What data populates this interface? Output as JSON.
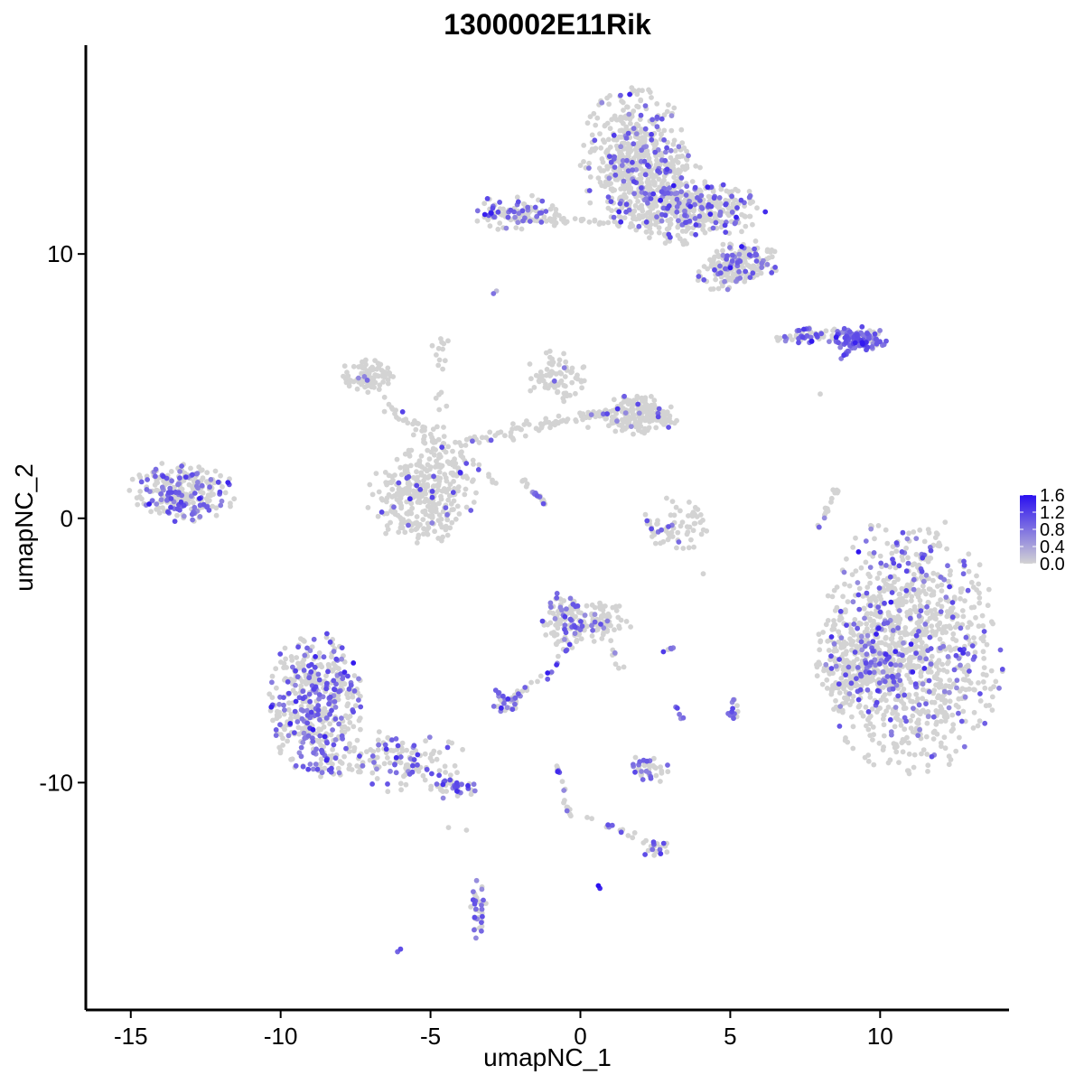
{
  "chart_data": {
    "type": "scatter",
    "title": "1300002E11Rik",
    "xlabel": "umapNC_1",
    "ylabel": "umapNC_2",
    "xlim": [
      -16.5,
      14.3
    ],
    "ylim": [
      -18.6,
      17.9
    ],
    "x_ticks": [
      -15,
      -10,
      -5,
      0,
      5,
      10
    ],
    "x_tick_labels": [
      "-15",
      "-10",
      "-5",
      "0",
      "5",
      "10"
    ],
    "y_ticks": [
      -10,
      0,
      10
    ],
    "y_tick_labels": [
      "-10",
      "0",
      "10"
    ],
    "grid": false,
    "legend": {
      "placement": "right",
      "type": "colorbar",
      "low_color": "#d3d3d3",
      "high_color": "#2a10f0",
      "range": [
        0,
        1.6
      ],
      "ticks": [
        0.0,
        0.4,
        0.8,
        1.2,
        1.6
      ],
      "tick_labels": [
        "0.0",
        "0.4",
        "0.8",
        "1.2",
        "1.6"
      ]
    },
    "point_color_low": "#d3d3d3",
    "point_color_high": "#2a10f0",
    "clusters": [
      {
        "center": [
          11.0,
          -4.8
        ],
        "spread": [
          1.5,
          2.4
        ],
        "n": 1100,
        "expr_frac": 0.2
      },
      {
        "center": [
          9.0,
          -5.6
        ],
        "spread": [
          0.55,
          0.9
        ],
        "n": 150,
        "expr_frac": 0.15
      },
      {
        "center": [
          1.8,
          13.6
        ],
        "spread": [
          0.9,
          1.3
        ],
        "n": 500,
        "expr_frac": 0.2
      },
      {
        "center": [
          3.0,
          12.0
        ],
        "spread": [
          0.7,
          0.9
        ],
        "n": 220,
        "expr_frac": 0.15
      },
      {
        "center": [
          4.3,
          11.7
        ],
        "spread": [
          1.0,
          0.5
        ],
        "n": 220,
        "expr_frac": 0.25
      },
      {
        "center": [
          5.5,
          9.7
        ],
        "spread": [
          0.6,
          0.4
        ],
        "n": 140,
        "expr_frac": 0.25
      },
      {
        "center": [
          4.7,
          9.3
        ],
        "spread": [
          0.4,
          0.4
        ],
        "n": 60,
        "expr_frac": 0.15
      },
      {
        "center": [
          -2.2,
          11.6
        ],
        "spread": [
          0.7,
          0.35
        ],
        "n": 80,
        "expr_frac": 0.35
      },
      {
        "center": [
          9.3,
          6.8
        ],
        "spread": [
          0.5,
          0.22
        ],
        "n": 120,
        "expr_frac": 0.85
      },
      {
        "center": [
          7.8,
          6.9
        ],
        "spread": [
          0.7,
          0.15
        ],
        "n": 60,
        "expr_frac": 0.6
      },
      {
        "center": [
          -13.3,
          1.0
        ],
        "spread": [
          0.9,
          0.55
        ],
        "n": 260,
        "expr_frac": 0.3
      },
      {
        "center": [
          -5.3,
          0.8
        ],
        "spread": [
          0.9,
          0.9
        ],
        "n": 300,
        "expr_frac": 0.06
      },
      {
        "center": [
          -7.0,
          5.4
        ],
        "spread": [
          0.5,
          0.35
        ],
        "n": 90,
        "expr_frac": 0.03
      },
      {
        "center": [
          2.0,
          3.9
        ],
        "spread": [
          0.6,
          0.4
        ],
        "n": 180,
        "expr_frac": 0.05
      },
      {
        "center": [
          -0.8,
          5.3
        ],
        "spread": [
          0.5,
          0.5
        ],
        "n": 80,
        "expr_frac": 0.03
      },
      {
        "center": [
          -8.8,
          -7.0
        ],
        "spread": [
          0.8,
          1.3
        ],
        "n": 450,
        "expr_frac": 0.38
      },
      {
        "center": [
          -6.3,
          -9.2
        ],
        "spread": [
          1.3,
          0.55
        ],
        "n": 150,
        "expr_frac": 0.3
      },
      {
        "center": [
          -4.3,
          -10.2
        ],
        "spread": [
          0.4,
          0.2
        ],
        "n": 40,
        "expr_frac": 0.4
      },
      {
        "center": [
          -0.5,
          -3.8
        ],
        "spread": [
          0.4,
          0.55
        ],
        "n": 100,
        "expr_frac": 0.3
      },
      {
        "center": [
          0.6,
          -3.9
        ],
        "spread": [
          0.55,
          0.4
        ],
        "n": 70,
        "expr_frac": 0.1
      },
      {
        "center": [
          3.2,
          -0.2
        ],
        "spread": [
          0.6,
          0.5
        ],
        "n": 70,
        "expr_frac": 0.05
      },
      {
        "center": [
          2.3,
          -9.5
        ],
        "spread": [
          0.35,
          0.3
        ],
        "n": 40,
        "expr_frac": 0.3
      },
      {
        "center": [
          -2.5,
          -6.9
        ],
        "spread": [
          0.3,
          0.25
        ],
        "n": 35,
        "expr_frac": 0.3
      },
      {
        "center": [
          -3.4,
          -14.8
        ],
        "spread": [
          0.15,
          0.55
        ],
        "n": 35,
        "expr_frac": 0.5
      },
      {
        "center": [
          5.1,
          -7.2
        ],
        "spread": [
          0.1,
          0.2
        ],
        "n": 12,
        "expr_frac": 0.6
      },
      {
        "center": [
          2.5,
          -12.5
        ],
        "spread": [
          0.25,
          0.15
        ],
        "n": 18,
        "expr_frac": 0.4
      }
    ],
    "trajectories": [
      {
        "from": [
          -4.8,
          2.6
        ],
        "to": [
          -5.5,
          0.8
        ],
        "n": 25,
        "jitter": 0.25,
        "expr_frac": 0.05
      },
      {
        "from": [
          -4.8,
          2.6
        ],
        "to": [
          -1.5,
          3.5
        ],
        "n": 45,
        "jitter": 0.3,
        "expr_frac": 0.04
      },
      {
        "from": [
          -1.5,
          3.5
        ],
        "to": [
          1.0,
          4.0
        ],
        "n": 45,
        "jitter": 0.25,
        "expr_frac": 0.04
      },
      {
        "from": [
          -4.8,
          2.6
        ],
        "to": [
          -7.2,
          5.2
        ],
        "n": 35,
        "jitter": 0.25,
        "expr_frac": 0.03
      },
      {
        "from": [
          -4.8,
          2.6
        ],
        "to": [
          -4.6,
          7.3
        ],
        "n": 25,
        "jitter": 0.3,
        "expr_frac": 0.03
      },
      {
        "from": [
          -4.0,
          2.5
        ],
        "to": [
          -2.5,
          1.0
        ],
        "n": 14,
        "jitter": 0.2,
        "expr_frac": 0.05
      },
      {
        "from": [
          -2.0,
          1.5
        ],
        "to": [
          -1.2,
          0.6
        ],
        "n": 12,
        "jitter": 0.1,
        "expr_frac": 0.2
      },
      {
        "from": [
          -3.0,
          11.6
        ],
        "to": [
          -1.3,
          11.3
        ],
        "n": 30,
        "jitter": 0.2,
        "expr_frac": 0.3
      },
      {
        "from": [
          -1.3,
          11.3
        ],
        "to": [
          1.3,
          11.2
        ],
        "n": 30,
        "jitter": 0.15,
        "expr_frac": 0.05
      },
      {
        "from": [
          1.3,
          11.2
        ],
        "to": [
          1.8,
          13.6
        ],
        "n": 20,
        "jitter": 0.3,
        "expr_frac": 0.05
      },
      {
        "from": [
          8.6,
          1.2
        ],
        "to": [
          7.9,
          -0.5
        ],
        "n": 18,
        "jitter": 0.1,
        "expr_frac": 0.2
      },
      {
        "from": [
          9.0,
          6.4
        ],
        "to": [
          8.6,
          5.9
        ],
        "n": 8,
        "jitter": 0.08,
        "expr_frac": 0.9
      },
      {
        "from": [
          0.0,
          -4.2
        ],
        "to": [
          -1.2,
          -6.0
        ],
        "n": 14,
        "jitter": 0.15,
        "expr_frac": 0.4
      },
      {
        "from": [
          -1.2,
          -6.0
        ],
        "to": [
          -2.3,
          -6.8
        ],
        "n": 10,
        "jitter": 0.12,
        "expr_frac": 0.3
      },
      {
        "from": [
          0.8,
          -4.0
        ],
        "to": [
          1.3,
          -5.7
        ],
        "n": 12,
        "jitter": 0.15,
        "expr_frac": 0.15
      },
      {
        "from": [
          -0.8,
          -9.3
        ],
        "to": [
          -0.3,
          -11.5
        ],
        "n": 18,
        "jitter": 0.1,
        "expr_frac": 0.35
      },
      {
        "from": [
          0.2,
          -11.3
        ],
        "to": [
          2.4,
          -12.3
        ],
        "n": 14,
        "jitter": 0.1,
        "expr_frac": 0.3
      },
      {
        "from": [
          -1.7,
          1.1
        ],
        "to": [
          -1.2,
          0.6
        ],
        "n": 8,
        "jitter": 0.05,
        "expr_frac": 0.3
      },
      {
        "from": [
          2.7,
          -5.1
        ],
        "to": [
          3.1,
          -4.9
        ],
        "n": 6,
        "jitter": 0.05,
        "expr_frac": 0.6
      },
      {
        "from": [
          3.2,
          -7.1
        ],
        "to": [
          3.4,
          -7.7
        ],
        "n": 5,
        "jitter": 0.05,
        "expr_frac": 0.6
      },
      {
        "from": [
          -3.6,
          1.3
        ],
        "to": [
          -4.4,
          2.2
        ],
        "n": 10,
        "jitter": 0.1,
        "expr_frac": 0.1
      }
    ],
    "isolated_points": [
      {
        "x": 0.6,
        "y": -13.9,
        "value": 1.6
      },
      {
        "x": 0.65,
        "y": -14.0,
        "value": 1.4
      },
      {
        "x": -6.0,
        "y": -16.3,
        "value": 1.1
      },
      {
        "x": -6.1,
        "y": -16.4,
        "value": 0.9
      },
      {
        "x": -2.9,
        "y": 8.5,
        "value": 0.8
      },
      {
        "x": -2.8,
        "y": 8.6,
        "value": 0.2
      },
      {
        "x": 8.0,
        "y": 4.7,
        "value": 0.0
      },
      {
        "x": 4.1,
        "y": -2.1,
        "value": 0.0
      },
      {
        "x": -4.4,
        "y": -11.7,
        "value": 0.0
      },
      {
        "x": -3.8,
        "y": -11.8,
        "value": 0.0
      }
    ]
  }
}
